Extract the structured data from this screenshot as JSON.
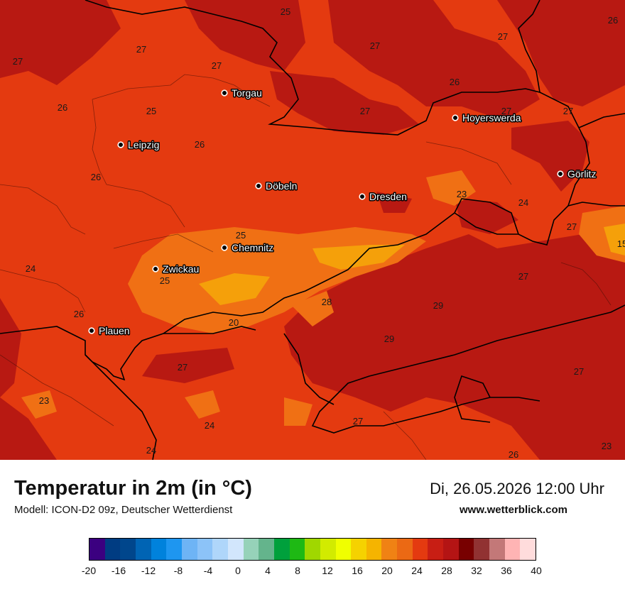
{
  "map": {
    "base_color": "#e43a10",
    "cities": [
      {
        "name": "Torgau"
      },
      {
        "name": "Hoyerswerda"
      },
      {
        "name": "Leipzig"
      },
      {
        "name": "Görlitz"
      },
      {
        "name": "Döbeln"
      },
      {
        "name": "Dresden"
      },
      {
        "name": "Chemnitz"
      },
      {
        "name": "Zwickau"
      },
      {
        "name": "Plauen"
      }
    ],
    "isotherm_labels": [
      "25",
      "26",
      "27",
      "27",
      "27",
      "27",
      "27",
      "26",
      "25",
      "26",
      "27",
      "27",
      "27",
      "26",
      "26",
      "24",
      "23",
      "24",
      "25",
      "27",
      "15",
      "24",
      "25",
      "28",
      "29",
      "26",
      "20",
      "29",
      "27",
      "27",
      "23",
      "24",
      "27",
      "27",
      "24",
      "26",
      "23"
    ]
  },
  "footer": {
    "title": "Temperatur in 2m (in °C)",
    "subtitle": "Modell: ICON-D2 09z, Deutscher Wetterdienst",
    "datetime": "Di, 26.05.2026 12:00 Uhr",
    "website": "www.wetterblick.com"
  },
  "colorbar": {
    "colors": [
      "#3b0080",
      "#003c82",
      "#00468c",
      "#0064b4",
      "#0082dc",
      "#1e96f0",
      "#6eb4f5",
      "#8cc3f8",
      "#afd6fa",
      "#d2e6fc",
      "#96d2b9",
      "#64b48c",
      "#00a03c",
      "#1eb914",
      "#a0d700",
      "#d2eb00",
      "#f0ff00",
      "#f5d200",
      "#f5b400",
      "#f08214",
      "#eb6914",
      "#e43a10",
      "#c81e14",
      "#b41414",
      "#780000",
      "#913232",
      "#c37878",
      "#ffb4b4",
      "#ffdcdc"
    ],
    "ticks": [
      "-20",
      "-16",
      "-12",
      "-8",
      "-4",
      "0",
      "4",
      "8",
      "12",
      "16",
      "20",
      "24",
      "28",
      "32",
      "36",
      "40"
    ],
    "min": -20,
    "max": 40
  }
}
